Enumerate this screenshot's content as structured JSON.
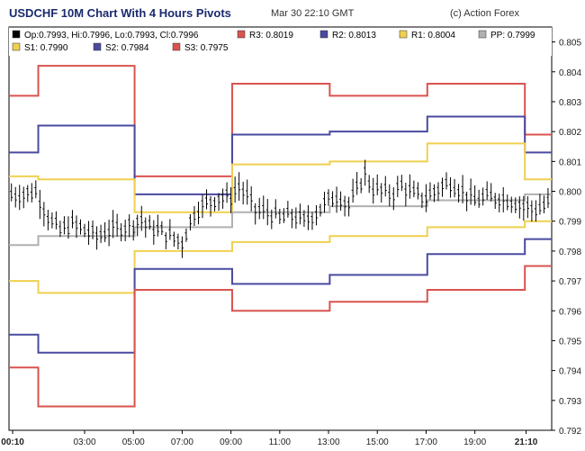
{
  "header": {
    "title": "USDCHF 10M Chart With 4 Hours Pivots",
    "date": "Mar 30 22:10 GMT",
    "credit": "(c) Action Forex"
  },
  "legend": [
    {
      "key": "ohlc",
      "label": "Op:0.7993, Hi:0.7996, Lo:0.7993, Cl:0.7996",
      "color": "#000000"
    },
    {
      "key": "r3",
      "label": "R3: 0.8019",
      "color": "#d9534f"
    },
    {
      "key": "r2",
      "label": "R2: 0.8013",
      "color": "#4a4aa0"
    },
    {
      "key": "r1",
      "label": "R1: 0.8004",
      "color": "#f0d050"
    },
    {
      "key": "pp",
      "label": "PP: 0.7999",
      "color": "#b0b0b0"
    },
    {
      "key": "s1",
      "label": "S1: 0.7990",
      "color": "#f0d050"
    },
    {
      "key": "s2",
      "label": "S2: 0.7984",
      "color": "#4a4aa0"
    },
    {
      "key": "s3",
      "label": "S3: 0.7975",
      "color": "#d9534f"
    }
  ],
  "chart_data": {
    "type": "line",
    "title": "USDCHF 10M Chart With 4 Hours Pivots",
    "ylim": [
      0.792,
      0.8055
    ],
    "yticks": [
      "0.805",
      "0.804",
      "0.803",
      "0.802",
      "0.801",
      "0.800",
      "0.799",
      "0.798",
      "0.797",
      "0.796",
      "0.795",
      "0.794",
      "0.793",
      "0.792"
    ],
    "xticks": [
      {
        "label": "00:10",
        "bold": true,
        "x": 0.05
      },
      {
        "label": "03:00",
        "bold": false,
        "x": 3.0
      },
      {
        "label": "05:00",
        "bold": false,
        "x": 5.0
      },
      {
        "label": "07:00",
        "bold": false,
        "x": 7.0
      },
      {
        "label": "09:00",
        "bold": false,
        "x": 9.0
      },
      {
        "label": "11:00",
        "bold": false,
        "x": 11.0
      },
      {
        "label": "13:00",
        "bold": false,
        "x": 13.0
      },
      {
        "label": "15:00",
        "bold": false,
        "x": 15.0
      },
      {
        "label": "17:00",
        "bold": false,
        "x": 17.0
      },
      {
        "label": "19:00",
        "bold": false,
        "x": 19.0
      },
      {
        "label": "21:10",
        "bold": true,
        "x": 21.1
      }
    ],
    "xlim": [
      -0.1,
      22.15
    ],
    "pivot_breaks": [
      -0.1,
      1.1,
      5.05,
      9.05,
      13.05,
      17.05,
      21.05,
      22.15
    ],
    "series": [
      {
        "key": "r3",
        "color": "#d9534f",
        "levels": [
          0.8032,
          0.8042,
          0.8005,
          0.8036,
          0.8032,
          0.8036,
          0.8019
        ]
      },
      {
        "key": "r2",
        "color": "#4a4aa0",
        "levels": [
          0.8013,
          0.8022,
          0.7999,
          0.8019,
          0.802,
          0.8025,
          0.8013
        ]
      },
      {
        "key": "r1",
        "color": "#f0d050",
        "levels": [
          0.8005,
          0.8004,
          0.7993,
          0.8009,
          0.801,
          0.8016,
          0.8004
        ]
      },
      {
        "key": "pp",
        "color": "#b0b0b0",
        "levels": [
          0.7982,
          0.7985,
          0.7988,
          0.7993,
          0.7995,
          0.7997,
          0.7999
        ]
      },
      {
        "key": "s1",
        "color": "#f0d050",
        "levels": [
          0.797,
          0.7966,
          0.798,
          0.7983,
          0.7985,
          0.7988,
          0.799
        ]
      },
      {
        "key": "s2",
        "color": "#4a4aa0",
        "levels": [
          0.7952,
          0.7946,
          0.7974,
          0.7969,
          0.7972,
          0.7979,
          0.7984
        ]
      },
      {
        "key": "s3",
        "color": "#d9534f",
        "levels": [
          0.7941,
          0.7928,
          0.7967,
          0.796,
          0.7963,
          0.7967,
          0.7975
        ]
      }
    ],
    "price": [
      [
        0.0,
        0.7999
      ],
      [
        0.5,
        0.7999
      ],
      [
        1.0,
        0.8
      ],
      [
        1.3,
        0.7995
      ],
      [
        1.6,
        0.799
      ],
      [
        2.0,
        0.7987
      ],
      [
        2.5,
        0.7989
      ],
      [
        3.0,
        0.7987
      ],
      [
        3.5,
        0.7985
      ],
      [
        4.0,
        0.7987
      ],
      [
        4.5,
        0.7988
      ],
      [
        5.0,
        0.7989
      ],
      [
        5.3,
        0.7991
      ],
      [
        5.6,
        0.7988
      ],
      [
        6.0,
        0.7987
      ],
      [
        6.5,
        0.7985
      ],
      [
        7.0,
        0.7983
      ],
      [
        7.2,
        0.7987
      ],
      [
        7.5,
        0.7993
      ],
      [
        8.0,
        0.7996
      ],
      [
        8.5,
        0.7998
      ],
      [
        9.0,
        0.7998
      ],
      [
        9.3,
        0.8002
      ],
      [
        9.6,
        0.7999
      ],
      [
        10.0,
        0.7994
      ],
      [
        10.5,
        0.7993
      ],
      [
        11.0,
        0.7991
      ],
      [
        11.5,
        0.7992
      ],
      [
        12.0,
        0.799
      ],
      [
        12.5,
        0.7993
      ],
      [
        13.0,
        0.7997
      ],
      [
        13.4,
        0.7999
      ],
      [
        13.8,
        0.7995
      ],
      [
        14.2,
        0.8001
      ],
      [
        14.5,
        0.8006
      ],
      [
        14.8,
        0.8001
      ],
      [
        15.2,
        0.8
      ],
      [
        15.6,
        0.7999
      ],
      [
        16.0,
        0.8002
      ],
      [
        16.5,
        0.7999
      ],
      [
        17.0,
        0.7998
      ],
      [
        17.5,
        0.8001
      ],
      [
        18.0,
        0.8003
      ],
      [
        18.5,
        0.8
      ],
      [
        19.0,
        0.7997
      ],
      [
        19.5,
        0.7998
      ],
      [
        20.0,
        0.7998
      ],
      [
        20.5,
        0.7997
      ],
      [
        21.0,
        0.7995
      ],
      [
        21.5,
        0.7994
      ],
      [
        22.0,
        0.7996
      ]
    ]
  }
}
